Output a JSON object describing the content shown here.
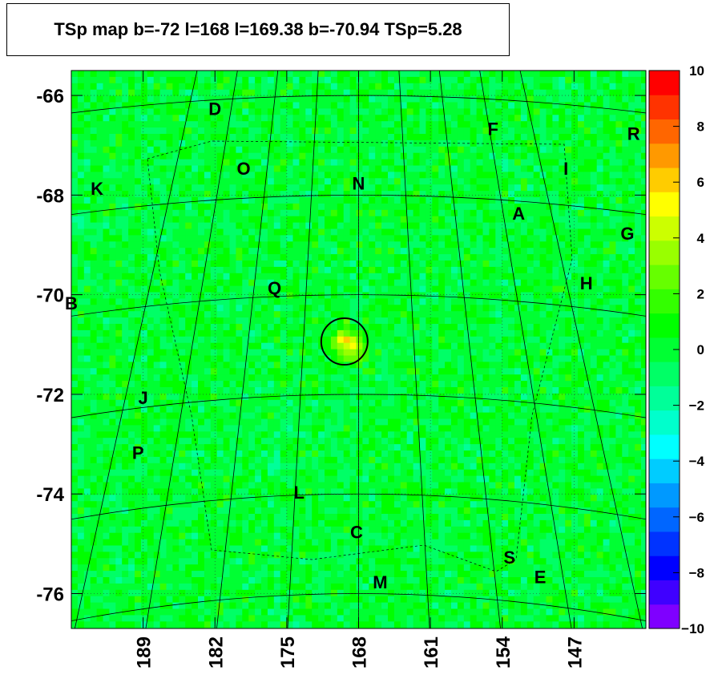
{
  "title": "TSp map b=-72 l=168 l=169.38 b=-70.94 TSp=5.28",
  "chart_data": {
    "type": "heatmap",
    "title": "TSp map b=-72 l=168 l=169.38 b=-70.94 TSp=5.28",
    "xlabel": "",
    "ylabel": "",
    "x_ticks": [
      "189",
      "182",
      "175",
      "168",
      "161",
      "154",
      "147"
    ],
    "x_tick_values": [
      189,
      182,
      175,
      168,
      161,
      154,
      147
    ],
    "y_ticks": [
      "-66",
      "-68",
      "-70",
      "-72",
      "-74",
      "-76"
    ],
    "y_tick_values": [
      -66,
      -68,
      -70,
      -72,
      -74,
      -76
    ],
    "xlim": [
      196,
      140
    ],
    "ylim": [
      -76.7,
      -65.5
    ],
    "colorbar": {
      "ticks": [
        "10",
        "8",
        "6",
        "4",
        "2",
        "0",
        "−2",
        "−4",
        "−6",
        "−8",
        "−10"
      ],
      "tick_values": [
        10,
        8,
        6,
        4,
        2,
        0,
        -2,
        -4,
        -6,
        -8,
        -10
      ],
      "range": [
        -10,
        10
      ],
      "colors": [
        "#7f00ff",
        "#3f00ff",
        "#0000ff",
        "#0033ff",
        "#0066ff",
        "#0099ff",
        "#00ccff",
        "#00ffff",
        "#00ffcc",
        "#00ff99",
        "#00ff66",
        "#00ff33",
        "#00ff00",
        "#33ff00",
        "#66ff00",
        "#99ff00",
        "#ccff00",
        "#ffff00",
        "#ffcc00",
        "#ff9900",
        "#ff6600",
        "#ff3300",
        "#ff0000"
      ]
    },
    "dominant_value_range": [
      -2,
      2
    ],
    "peak": {
      "l": 169.38,
      "b": -70.94,
      "value": 5.28,
      "marker": "circle"
    },
    "sources": [
      {
        "label": "D",
        "l": 182,
        "b": -66.3
      },
      {
        "label": "F",
        "l": 154.9,
        "b": -66.7
      },
      {
        "label": "R",
        "l": 141.2,
        "b": -66.8
      },
      {
        "label": "O",
        "l": 179.2,
        "b": -67.5
      },
      {
        "label": "I",
        "l": 147.8,
        "b": -67.5
      },
      {
        "label": "K",
        "l": 193.5,
        "b": -67.9
      },
      {
        "label": "N",
        "l": 168,
        "b": -67.8
      },
      {
        "label": "A",
        "l": 152.4,
        "b": -68.4
      },
      {
        "label": "G",
        "l": 141.8,
        "b": -68.8
      },
      {
        "label": "Q",
        "l": 176.2,
        "b": -69.9
      },
      {
        "label": "H",
        "l": 145.8,
        "b": -69.8
      },
      {
        "label": "B",
        "l": 196,
        "b": -70.2
      },
      {
        "label": "J",
        "l": 189,
        "b": -72.1
      },
      {
        "label": "P",
        "l": 189.5,
        "b": -73.2
      },
      {
        "label": "L",
        "l": 173.8,
        "b": -74
      },
      {
        "label": "C",
        "l": 168.2,
        "b": -74.8
      },
      {
        "label": "S",
        "l": 153.3,
        "b": -75.3
      },
      {
        "label": "E",
        "l": 150.3,
        "b": -75.7
      },
      {
        "label": "M",
        "l": 165.9,
        "b": -75.8
      }
    ]
  }
}
